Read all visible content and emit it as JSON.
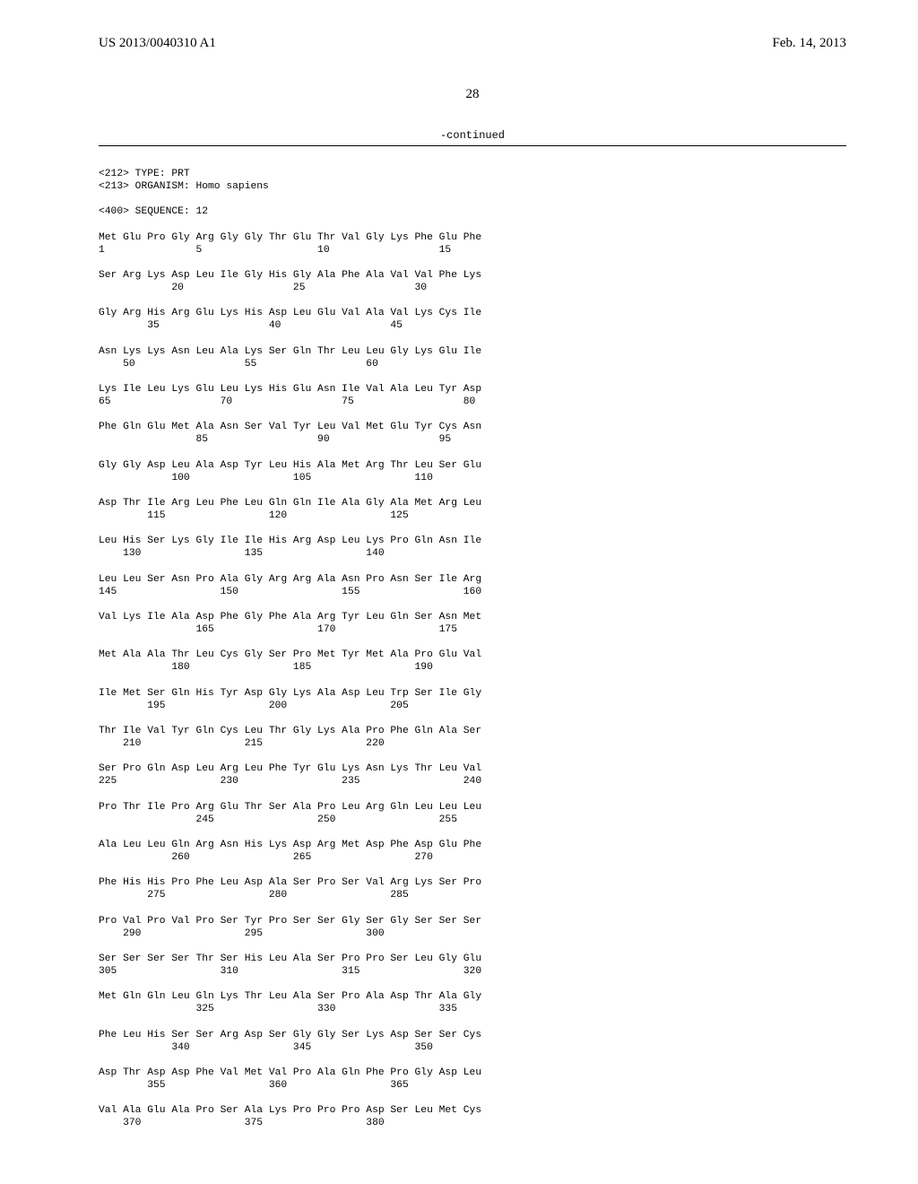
{
  "header": {
    "left": "US 2013/0040310 A1",
    "right": "Feb. 14, 2013"
  },
  "page_number": "28",
  "continued_label": "-continued",
  "meta": {
    "type_line": "<212> TYPE: PRT",
    "organism_line": "<213> ORGANISM: Homo sapiens",
    "sequence_line": "<400> SEQUENCE: 12"
  },
  "rows": [
    {
      "aa": "Met Glu Pro Gly Arg Gly Gly Thr Glu Thr Val Gly Lys Phe Glu Phe",
      "idx": "1               5                   10                  15"
    },
    {
      "aa": "Ser Arg Lys Asp Leu Ile Gly His Gly Ala Phe Ala Val Val Phe Lys",
      "idx": "            20                  25                  30"
    },
    {
      "aa": "Gly Arg His Arg Glu Lys His Asp Leu Glu Val Ala Val Lys Cys Ile",
      "idx": "        35                  40                  45"
    },
    {
      "aa": "Asn Lys Lys Asn Leu Ala Lys Ser Gln Thr Leu Leu Gly Lys Glu Ile",
      "idx": "    50                  55                  60"
    },
    {
      "aa": "Lys Ile Leu Lys Glu Leu Lys His Glu Asn Ile Val Ala Leu Tyr Asp",
      "idx": "65                  70                  75                  80"
    },
    {
      "aa": "Phe Gln Glu Met Ala Asn Ser Val Tyr Leu Val Met Glu Tyr Cys Asn",
      "idx": "                85                  90                  95"
    },
    {
      "aa": "Gly Gly Asp Leu Ala Asp Tyr Leu His Ala Met Arg Thr Leu Ser Glu",
      "idx": "            100                 105                 110"
    },
    {
      "aa": "Asp Thr Ile Arg Leu Phe Leu Gln Gln Ile Ala Gly Ala Met Arg Leu",
      "idx": "        115                 120                 125"
    },
    {
      "aa": "Leu His Ser Lys Gly Ile Ile His Arg Asp Leu Lys Pro Gln Asn Ile",
      "idx": "    130                 135                 140"
    },
    {
      "aa": "Leu Leu Ser Asn Pro Ala Gly Arg Arg Ala Asn Pro Asn Ser Ile Arg",
      "idx": "145                 150                 155                 160"
    },
    {
      "aa": "Val Lys Ile Ala Asp Phe Gly Phe Ala Arg Tyr Leu Gln Ser Asn Met",
      "idx": "                165                 170                 175"
    },
    {
      "aa": "Met Ala Ala Thr Leu Cys Gly Ser Pro Met Tyr Met Ala Pro Glu Val",
      "idx": "            180                 185                 190"
    },
    {
      "aa": "Ile Met Ser Gln His Tyr Asp Gly Lys Ala Asp Leu Trp Ser Ile Gly",
      "idx": "        195                 200                 205"
    },
    {
      "aa": "Thr Ile Val Tyr Gln Cys Leu Thr Gly Lys Ala Pro Phe Gln Ala Ser",
      "idx": "    210                 215                 220"
    },
    {
      "aa": "Ser Pro Gln Asp Leu Arg Leu Phe Tyr Glu Lys Asn Lys Thr Leu Val",
      "idx": "225                 230                 235                 240"
    },
    {
      "aa": "Pro Thr Ile Pro Arg Glu Thr Ser Ala Pro Leu Arg Gln Leu Leu Leu",
      "idx": "                245                 250                 255"
    },
    {
      "aa": "Ala Leu Leu Gln Arg Asn His Lys Asp Arg Met Asp Phe Asp Glu Phe",
      "idx": "            260                 265                 270"
    },
    {
      "aa": "Phe His His Pro Phe Leu Asp Ala Ser Pro Ser Val Arg Lys Ser Pro",
      "idx": "        275                 280                 285"
    },
    {
      "aa": "Pro Val Pro Val Pro Ser Tyr Pro Ser Ser Gly Ser Gly Ser Ser Ser",
      "idx": "    290                 295                 300"
    },
    {
      "aa": "Ser Ser Ser Ser Thr Ser His Leu Ala Ser Pro Pro Ser Leu Gly Glu",
      "idx": "305                 310                 315                 320"
    },
    {
      "aa": "Met Gln Gln Leu Gln Lys Thr Leu Ala Ser Pro Ala Asp Thr Ala Gly",
      "idx": "                325                 330                 335"
    },
    {
      "aa": "Phe Leu His Ser Ser Arg Asp Ser Gly Gly Ser Lys Asp Ser Ser Cys",
      "idx": "            340                 345                 350"
    },
    {
      "aa": "Asp Thr Asp Asp Phe Val Met Val Pro Ala Gln Phe Pro Gly Asp Leu",
      "idx": "        355                 360                 365"
    },
    {
      "aa": "Val Ala Glu Ala Pro Ser Ala Lys Pro Pro Pro Asp Ser Leu Met Cys",
      "idx": "    370                 375                 380"
    }
  ]
}
